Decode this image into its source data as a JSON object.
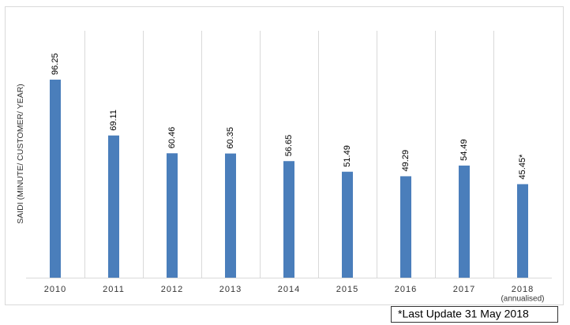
{
  "chart_data": {
    "type": "bar",
    "y_label": "SAIDI (MINUTE/ CUSTOMER/ YEAR)",
    "categories": [
      "2010",
      "2011",
      "2012",
      "2013",
      "2014",
      "2015",
      "2016",
      "2017",
      "2018"
    ],
    "category_notes": [
      null,
      null,
      null,
      null,
      null,
      null,
      null,
      null,
      "(annualised)"
    ],
    "values": [
      96.25,
      69.11,
      60.46,
      60.35,
      56.65,
      51.49,
      49.29,
      54.49,
      45.45
    ],
    "value_labels": [
      "96.25",
      "69.11",
      "60.46",
      "60.35",
      "56.65",
      "51.49",
      "49.29",
      "54.49",
      "45.45*"
    ],
    "color": "#4a7ebb",
    "ylim": [
      0,
      120
    ],
    "grid": true,
    "footnote": "*Last Update 31 May 2018"
  }
}
